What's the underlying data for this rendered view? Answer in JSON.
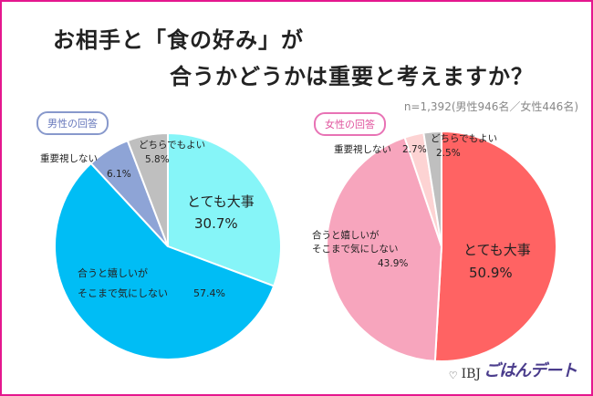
{
  "title_line1": "お相手と「食の好み」が",
  "title_line2": "合うかどうかは重要と考えますか？",
  "sample_note": "n=1,392(男性946名／女性446名)",
  "badges": {
    "male": "男性の回答",
    "female": "女性の回答"
  },
  "logo": {
    "heart": "♡",
    "ibj": "IBJ",
    "brand": "ごはんデート"
  },
  "colors": {
    "male": [
      "#86f5f8",
      "#00bdf5",
      "#8ea4d6",
      "#bfbfbf"
    ],
    "female": [
      "#ff6363",
      "#f7a5bd",
      "#fdd3d3",
      "#bfbfbf"
    ]
  },
  "chart_data": [
    {
      "type": "pie",
      "title": "男性の回答",
      "labels": [
        "とても大事",
        "合うと嬉しいが そこまで気にしない",
        "重要視しない",
        "どちらでもよい"
      ],
      "values": [
        30.7,
        57.4,
        6.1,
        5.8
      ],
      "value_labels": [
        "30.7%",
        "57.4%",
        "6.1%",
        "5.8%"
      ]
    },
    {
      "type": "pie",
      "title": "女性の回答",
      "labels": [
        "とても大事",
        "合うと嬉しいが そこまで気にしない",
        "重要視しない",
        "どちらでもよい"
      ],
      "values": [
        50.9,
        43.9,
        2.7,
        2.5
      ],
      "value_labels": [
        "50.9%",
        "43.9%",
        "2.7%",
        "2.5%"
      ]
    }
  ]
}
